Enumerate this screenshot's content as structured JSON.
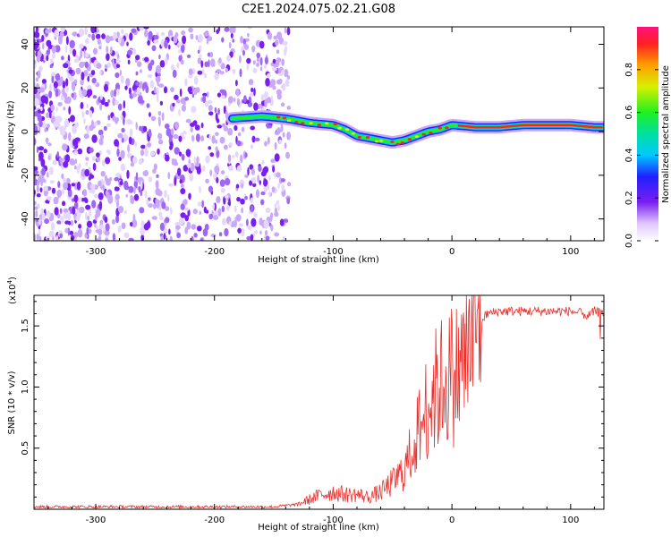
{
  "title": "C2E1.2024.075.02.21.G08",
  "colors": {
    "signal": "#e8302c",
    "scatter": "#7a1ff0",
    "axis": "#000000"
  },
  "chart_data": [
    {
      "type": "heatmap",
      "name": "spectrogram",
      "xlabel": "Height of straight line (km)",
      "ylabel": "Frequency (Hz)",
      "xlim": [
        -352,
        128
      ],
      "ylim": [
        -50,
        48
      ],
      "x_ticks": [
        -300,
        -200,
        -100,
        0,
        100
      ],
      "y_ticks": [
        -40,
        -20,
        0,
        20,
        40
      ],
      "colorbar": {
        "label": "Normalized spectral amplitude",
        "range": [
          0,
          1
        ],
        "ticks": [
          "0.0",
          "0.2",
          "0.4",
          "0.6",
          "0.8"
        ],
        "tick_values": [
          0.0,
          0.2,
          0.4,
          0.6,
          0.8
        ]
      },
      "ridge": {
        "x": [
          -185,
          -160,
          -140,
          -120,
          -100,
          -90,
          -80,
          -70,
          -60,
          -50,
          -40,
          -30,
          -20,
          -10,
          0,
          20,
          40,
          60,
          80,
          100,
          120,
          128
        ],
        "y": [
          6,
          7,
          6,
          4,
          3,
          1,
          -2,
          -3,
          -4,
          -5,
          -4,
          -2,
          0,
          1,
          3,
          2,
          2,
          3,
          3,
          3,
          2,
          2
        ]
      }
    },
    {
      "type": "line",
      "name": "snr",
      "xlabel": "Height of straight line (km)",
      "ylabel": "SNR (10 * v/v)",
      "multiplier": "(x10",
      "multiplier_exp": "4",
      "multiplier_close": ")",
      "xlim": [
        -352,
        128
      ],
      "ylim": [
        0,
        1.75
      ],
      "x_ticks": [
        -300,
        -200,
        -100,
        0,
        100
      ],
      "y_ticks": [
        0.5,
        1.0,
        1.5
      ],
      "y_tick_labels": [
        "0.5",
        "1.0",
        "1.5"
      ],
      "series": [
        {
          "x": [
            -352,
            -300,
            -250,
            -200,
            -150,
            -130,
            -120,
            -110,
            -100,
            -90,
            -80,
            -70,
            -60,
            -50,
            -40,
            -35,
            -30,
            -25,
            -20,
            -15,
            -10,
            -5,
            0,
            5,
            10,
            15,
            20,
            25,
            30,
            40,
            60,
            80,
            100,
            110,
            115,
            120,
            128
          ],
          "y": [
            0.02,
            0.02,
            0.02,
            0.02,
            0.02,
            0.04,
            0.08,
            0.12,
            0.14,
            0.12,
            0.12,
            0.1,
            0.14,
            0.22,
            0.32,
            0.45,
            0.6,
            0.72,
            0.88,
            0.95,
            1.02,
            1.08,
            1.1,
            1.12,
            1.22,
            1.35,
            1.48,
            1.55,
            1.6,
            1.62,
            1.62,
            1.62,
            1.62,
            1.6,
            1.58,
            1.62,
            1.6
          ]
        }
      ]
    }
  ]
}
